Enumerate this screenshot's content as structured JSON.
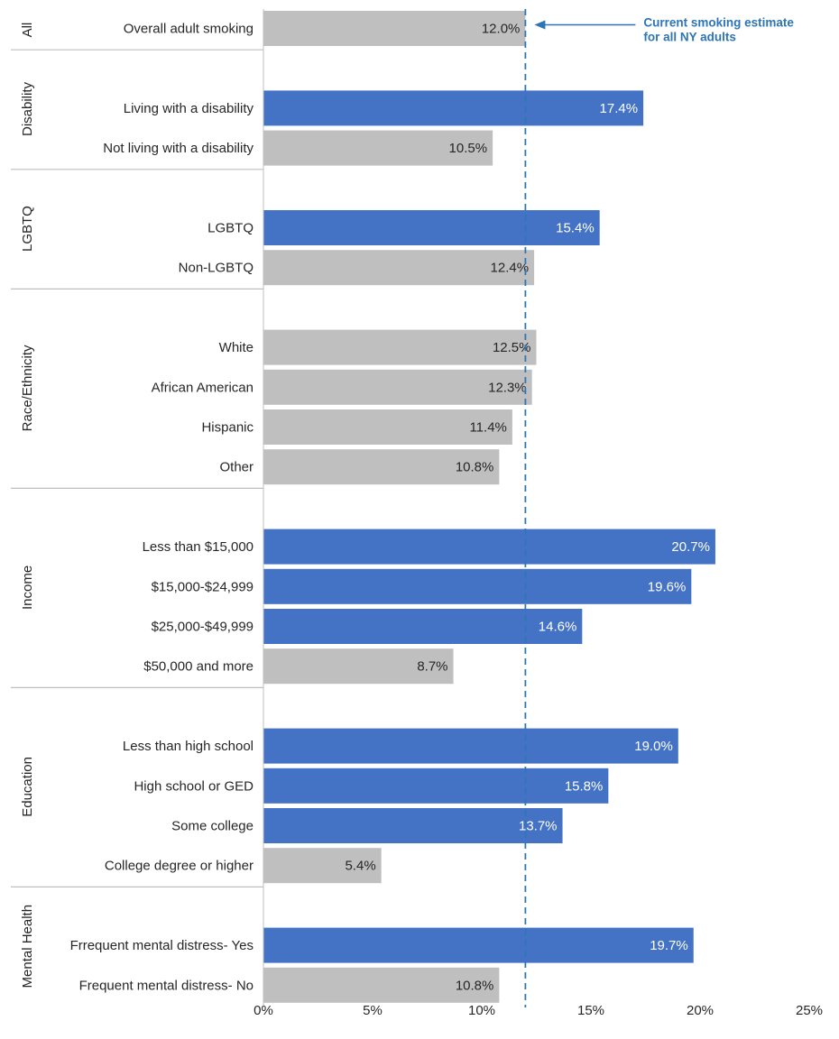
{
  "chart_data": {
    "type": "bar",
    "orientation": "horizontal",
    "x_range": [
      0,
      25
    ],
    "x_ticks": [
      "0%",
      "5%",
      "10%",
      "15%",
      "20%",
      "25%"
    ],
    "x_tick_values": [
      0,
      5,
      10,
      15,
      20,
      25
    ],
    "reference_line": {
      "value": 12.0,
      "style": "dashed",
      "annotation": [
        "Current smoking estimate",
        "for all NY adults"
      ]
    },
    "colors": {
      "highlight": "#4472C4",
      "neutral": "#BFBFBF",
      "highlight_text": "#FFFFFF",
      "neutral_text": "#262626",
      "annotation": "#2E75B6",
      "divider": "#BFBFBF"
    },
    "groups": [
      {
        "name": "All",
        "items": [
          {
            "label": "Overall adult smoking",
            "value": 12.0,
            "display": "12.0%",
            "highlight": false
          }
        ]
      },
      {
        "name": "Disability",
        "items": [
          {
            "label": "Living with a disability",
            "value": 17.4,
            "display": "17.4%",
            "highlight": true
          },
          {
            "label": "Not living with a  disability",
            "value": 10.5,
            "display": "10.5%",
            "highlight": false
          }
        ]
      },
      {
        "name": "LGBTQ",
        "items": [
          {
            "label": "LGBTQ",
            "value": 15.4,
            "display": "15.4%",
            "highlight": true
          },
          {
            "label": "Non-LGBTQ",
            "value": 12.4,
            "display": "12.4%",
            "highlight": false
          }
        ]
      },
      {
        "name": "Race/Ethnicity",
        "items": [
          {
            "label": "White",
            "value": 12.5,
            "display": "12.5%",
            "highlight": false
          },
          {
            "label": "African American",
            "value": 12.3,
            "display": "12.3%",
            "highlight": false
          },
          {
            "label": "Hispanic",
            "value": 11.4,
            "display": "11.4%",
            "highlight": false
          },
          {
            "label": "Other",
            "value": 10.8,
            "display": "10.8%",
            "highlight": false
          }
        ]
      },
      {
        "name": "Income",
        "items": [
          {
            "label": "Less than $15,000",
            "value": 20.7,
            "display": "20.7%",
            "highlight": true
          },
          {
            "label": "$15,000-$24,999",
            "value": 19.6,
            "display": "19.6%",
            "highlight": true
          },
          {
            "label": "$25,000-$49,999",
            "value": 14.6,
            "display": "14.6%",
            "highlight": true
          },
          {
            "label": "$50,000 and more",
            "value": 8.7,
            "display": "8.7%",
            "highlight": false
          }
        ]
      },
      {
        "name": "Education",
        "items": [
          {
            "label": "Less than high school",
            "value": 19.0,
            "display": "19.0%",
            "highlight": true
          },
          {
            "label": "High school or GED",
            "value": 15.8,
            "display": "15.8%",
            "highlight": true
          },
          {
            "label": "Some college",
            "value": 13.7,
            "display": "13.7%",
            "highlight": true
          },
          {
            "label": "College degree or higher",
            "value": 5.4,
            "display": "5.4%",
            "highlight": false
          }
        ]
      },
      {
        "name": "Mental Health",
        "items": [
          {
            "label": "Frrequent mental distress- Yes",
            "value": 19.7,
            "display": "19.7%",
            "highlight": true
          },
          {
            "label": "Frequent mental distress- No",
            "value": 10.8,
            "display": "10.8%",
            "highlight": false
          }
        ]
      }
    ]
  }
}
